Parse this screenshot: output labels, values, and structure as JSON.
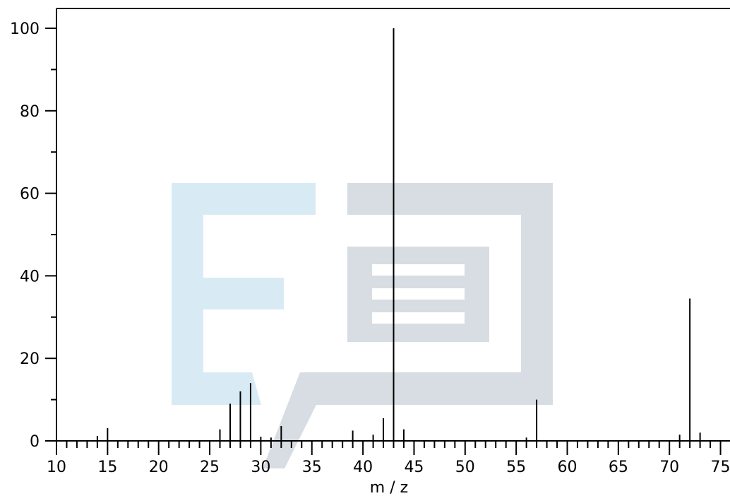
{
  "chart_data": {
    "type": "bar",
    "xlabel": "m / z",
    "ylabel": "",
    "xlim": [
      10,
      75.5
    ],
    "ylim": [
      0,
      100
    ],
    "x_ticks": [
      10,
      15,
      20,
      25,
      30,
      35,
      40,
      45,
      50,
      55,
      60,
      65,
      70,
      75
    ],
    "y_ticks": [
      0,
      20,
      40,
      60,
      80,
      100
    ],
    "grid": false,
    "peaks": [
      {
        "x": 14,
        "y": 1.2
      },
      {
        "x": 15,
        "y": 3.1
      },
      {
        "x": 26,
        "y": 2.8
      },
      {
        "x": 27,
        "y": 9.0
      },
      {
        "x": 28,
        "y": 12.0
      },
      {
        "x": 29,
        "y": 14.0
      },
      {
        "x": 30,
        "y": 1.0
      },
      {
        "x": 31,
        "y": 0.8
      },
      {
        "x": 32,
        "y": 3.6
      },
      {
        "x": 39,
        "y": 2.5
      },
      {
        "x": 41,
        "y": 1.5
      },
      {
        "x": 42,
        "y": 5.5
      },
      {
        "x": 43,
        "y": 100.0
      },
      {
        "x": 44,
        "y": 2.8
      },
      {
        "x": 56,
        "y": 0.8
      },
      {
        "x": 57,
        "y": 10.0
      },
      {
        "x": 71,
        "y": 1.5
      },
      {
        "x": 72,
        "y": 34.5
      },
      {
        "x": 73,
        "y": 2.0
      }
    ]
  },
  "watermark": {
    "color_light": "#d8ebf5",
    "color_gray": "#d7dde2"
  }
}
